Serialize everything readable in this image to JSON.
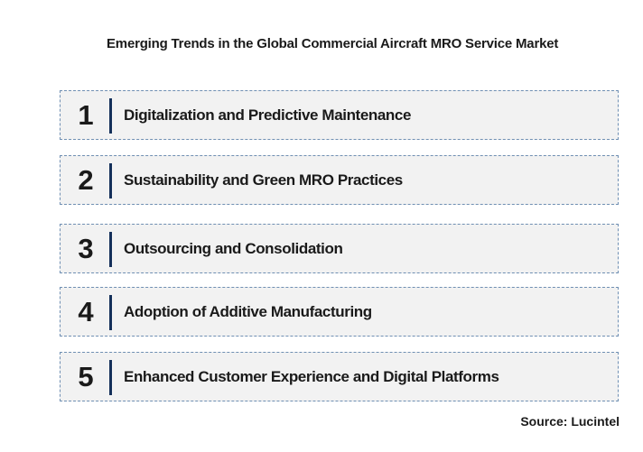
{
  "title": "Emerging Trends in the Global Commercial Aircraft MRO Service Market",
  "trends": [
    {
      "number": "1",
      "label": "Digitalization and Predictive Maintenance"
    },
    {
      "number": "2",
      "label": "Sustainability and Green MRO Practices"
    },
    {
      "number": "3",
      "label": "Outsourcing and Consolidation"
    },
    {
      "number": "4",
      "label": "Adoption of Additive Manufacturing"
    },
    {
      "number": "5",
      "label": "Enhanced Customer Experience and Digital Platforms"
    }
  ],
  "source": "Source: Lucintel",
  "colors": {
    "box_background": "#f2f2f2",
    "box_border": "#6f8fb3",
    "accent_bar": "#14305a",
    "text": "#1a1a1a"
  }
}
